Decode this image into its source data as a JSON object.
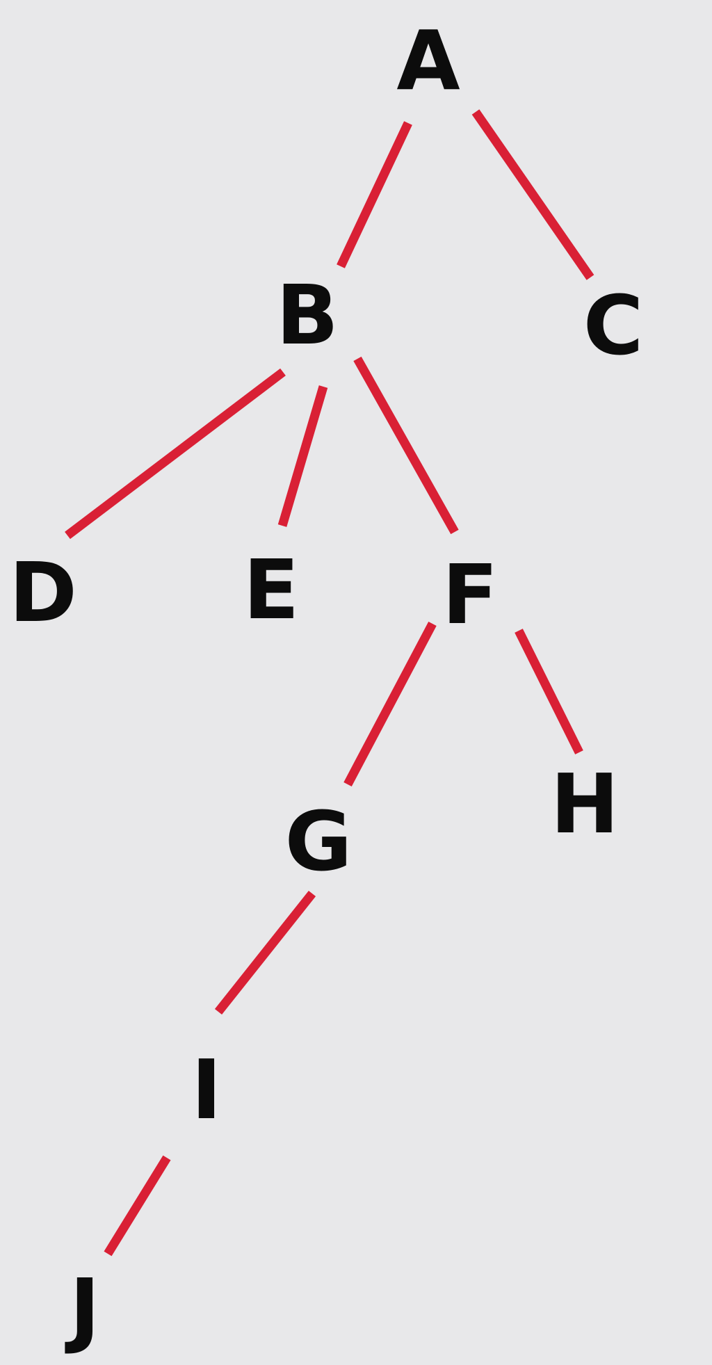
{
  "tree": {
    "nodes": [
      {
        "id": "A",
        "label": "A"
      },
      {
        "id": "B",
        "label": "B"
      },
      {
        "id": "C",
        "label": "C"
      },
      {
        "id": "D",
        "label": "D"
      },
      {
        "id": "E",
        "label": "E"
      },
      {
        "id": "F",
        "label": "F"
      },
      {
        "id": "G",
        "label": "G"
      },
      {
        "id": "H",
        "label": "H"
      },
      {
        "id": "I",
        "label": "I"
      },
      {
        "id": "J",
        "label": "J"
      }
    ],
    "edges": [
      {
        "from": "A",
        "to": "B"
      },
      {
        "from": "A",
        "to": "C"
      },
      {
        "from": "B",
        "to": "D"
      },
      {
        "from": "B",
        "to": "E"
      },
      {
        "from": "B",
        "to": "F"
      },
      {
        "from": "F",
        "to": "G"
      },
      {
        "from": "F",
        "to": "H"
      },
      {
        "from": "G",
        "to": "I"
      },
      {
        "from": "I",
        "to": "J"
      }
    ],
    "colors": {
      "edge": "#d92035",
      "label": "#0c0c0c",
      "background": "#e8e8ea"
    }
  }
}
